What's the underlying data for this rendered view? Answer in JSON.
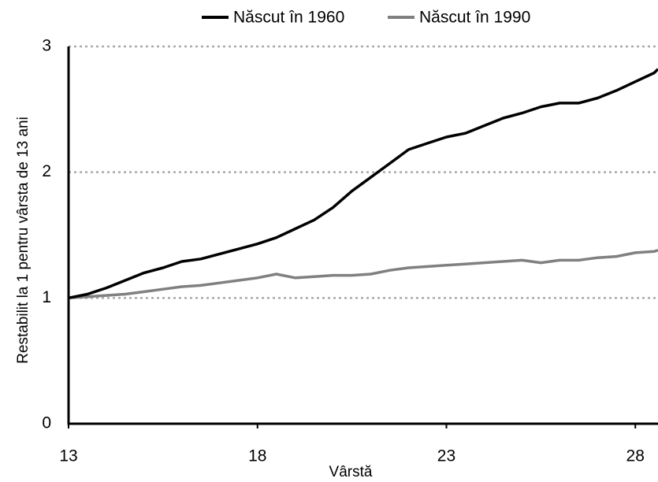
{
  "chart_data": {
    "type": "line",
    "x": [
      13,
      13.5,
      14,
      14.5,
      15,
      15.5,
      16,
      16.5,
      17,
      17.5,
      18,
      18.5,
      19,
      19.5,
      20,
      20.5,
      21,
      21.5,
      22,
      22.5,
      23,
      23.5,
      24,
      24.5,
      25,
      25.5,
      26,
      26.5,
      27,
      27.5,
      28,
      28.5,
      28.6
    ],
    "series": [
      {
        "name": "Născut în 1960",
        "color": "#000000",
        "values": [
          1.0,
          1.03,
          1.08,
          1.14,
          1.2,
          1.24,
          1.29,
          1.31,
          1.35,
          1.39,
          1.43,
          1.48,
          1.55,
          1.62,
          1.72,
          1.85,
          1.96,
          2.07,
          2.18,
          2.23,
          2.28,
          2.31,
          2.37,
          2.43,
          2.47,
          2.52,
          2.55,
          2.55,
          2.59,
          2.65,
          2.72,
          2.79,
          2.82
        ]
      },
      {
        "name": "Născut în 1990",
        "color": "#808080",
        "values": [
          1.0,
          1.01,
          1.02,
          1.03,
          1.05,
          1.07,
          1.09,
          1.1,
          1.12,
          1.14,
          1.16,
          1.19,
          1.16,
          1.17,
          1.18,
          1.18,
          1.19,
          1.22,
          1.24,
          1.25,
          1.26,
          1.27,
          1.28,
          1.29,
          1.3,
          1.28,
          1.3,
          1.3,
          1.32,
          1.33,
          1.36,
          1.37,
          1.38
        ]
      }
    ],
    "xlabel": "Vârstă",
    "ylabel": "Restabilit la 1 pentru vârsta de 13 ani",
    "xlim": [
      13,
      28.6
    ],
    "ylim": [
      0,
      3
    ],
    "xticks": [
      13,
      18,
      23,
      28
    ],
    "yticks": [
      0,
      1,
      2,
      3
    ],
    "grid": true,
    "legend": "top"
  }
}
